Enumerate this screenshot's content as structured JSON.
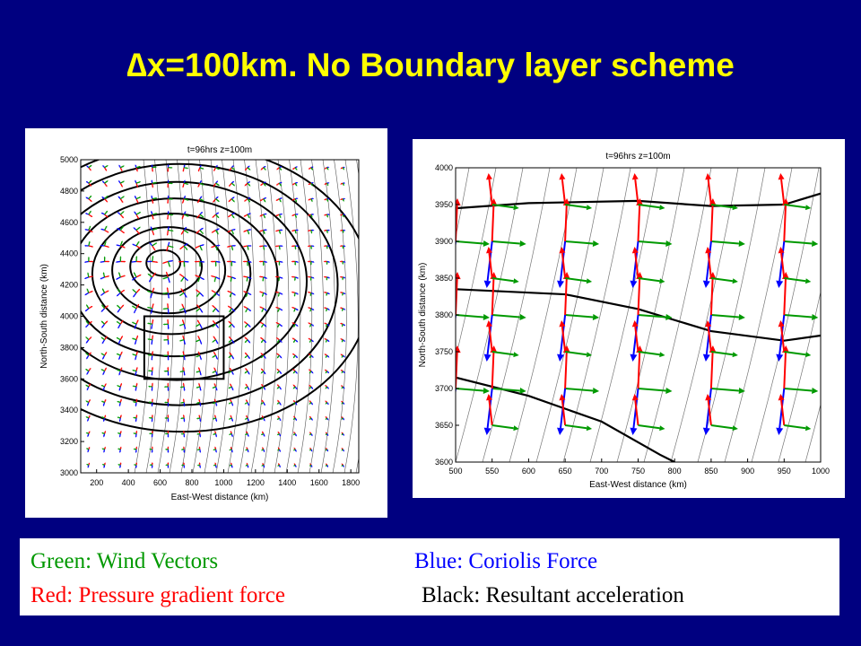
{
  "title": "∆x=100km.  No Boundary layer scheme",
  "panels": {
    "left": {
      "plot_title": "t=96hrs z=100m",
      "xlabel": "East-West distance (km)",
      "ylabel": "North-South distance (km)",
      "xticks": [
        "200",
        "400",
        "600",
        "800",
        "1000",
        "1200",
        "1400",
        "1600",
        "1800"
      ],
      "yticks": [
        "3000",
        "3200",
        "3400",
        "3600",
        "3800",
        "4000",
        "4200",
        "4400",
        "4600",
        "4800",
        "5000"
      ],
      "xlim": [
        100,
        1850
      ],
      "ylim": [
        3000,
        5000
      ],
      "subdomain_box": {
        "x": [
          500,
          1000
        ],
        "y": [
          3600,
          4000
        ]
      }
    },
    "right": {
      "plot_title": "t=96hrs z=100m",
      "xlabel": "East-West distance (km)",
      "ylabel": "North-South distance (km)",
      "xticks": [
        "500",
        "550",
        "600",
        "650",
        "700",
        "750",
        "800",
        "850",
        "900",
        "950",
        "1000"
      ],
      "yticks": [
        "3600",
        "3650",
        "3700",
        "3750",
        "3800",
        "3850",
        "3900",
        "3950",
        "4000"
      ],
      "xlim": [
        500,
        1000
      ],
      "ylim": [
        3600,
        4000
      ]
    }
  },
  "legend": {
    "wind": "Green: Wind Vectors",
    "coriolis": "Blue: Coriolis Force",
    "pgf": "Red: Pressure gradient force",
    "resultant": "Black: Resultant acceleration"
  },
  "colors": {
    "background": "#000080",
    "title": "#ffff00",
    "wind": "#009900",
    "coriolis": "#0000ff",
    "pgf": "#ff0000",
    "resultant": "#000000"
  }
}
